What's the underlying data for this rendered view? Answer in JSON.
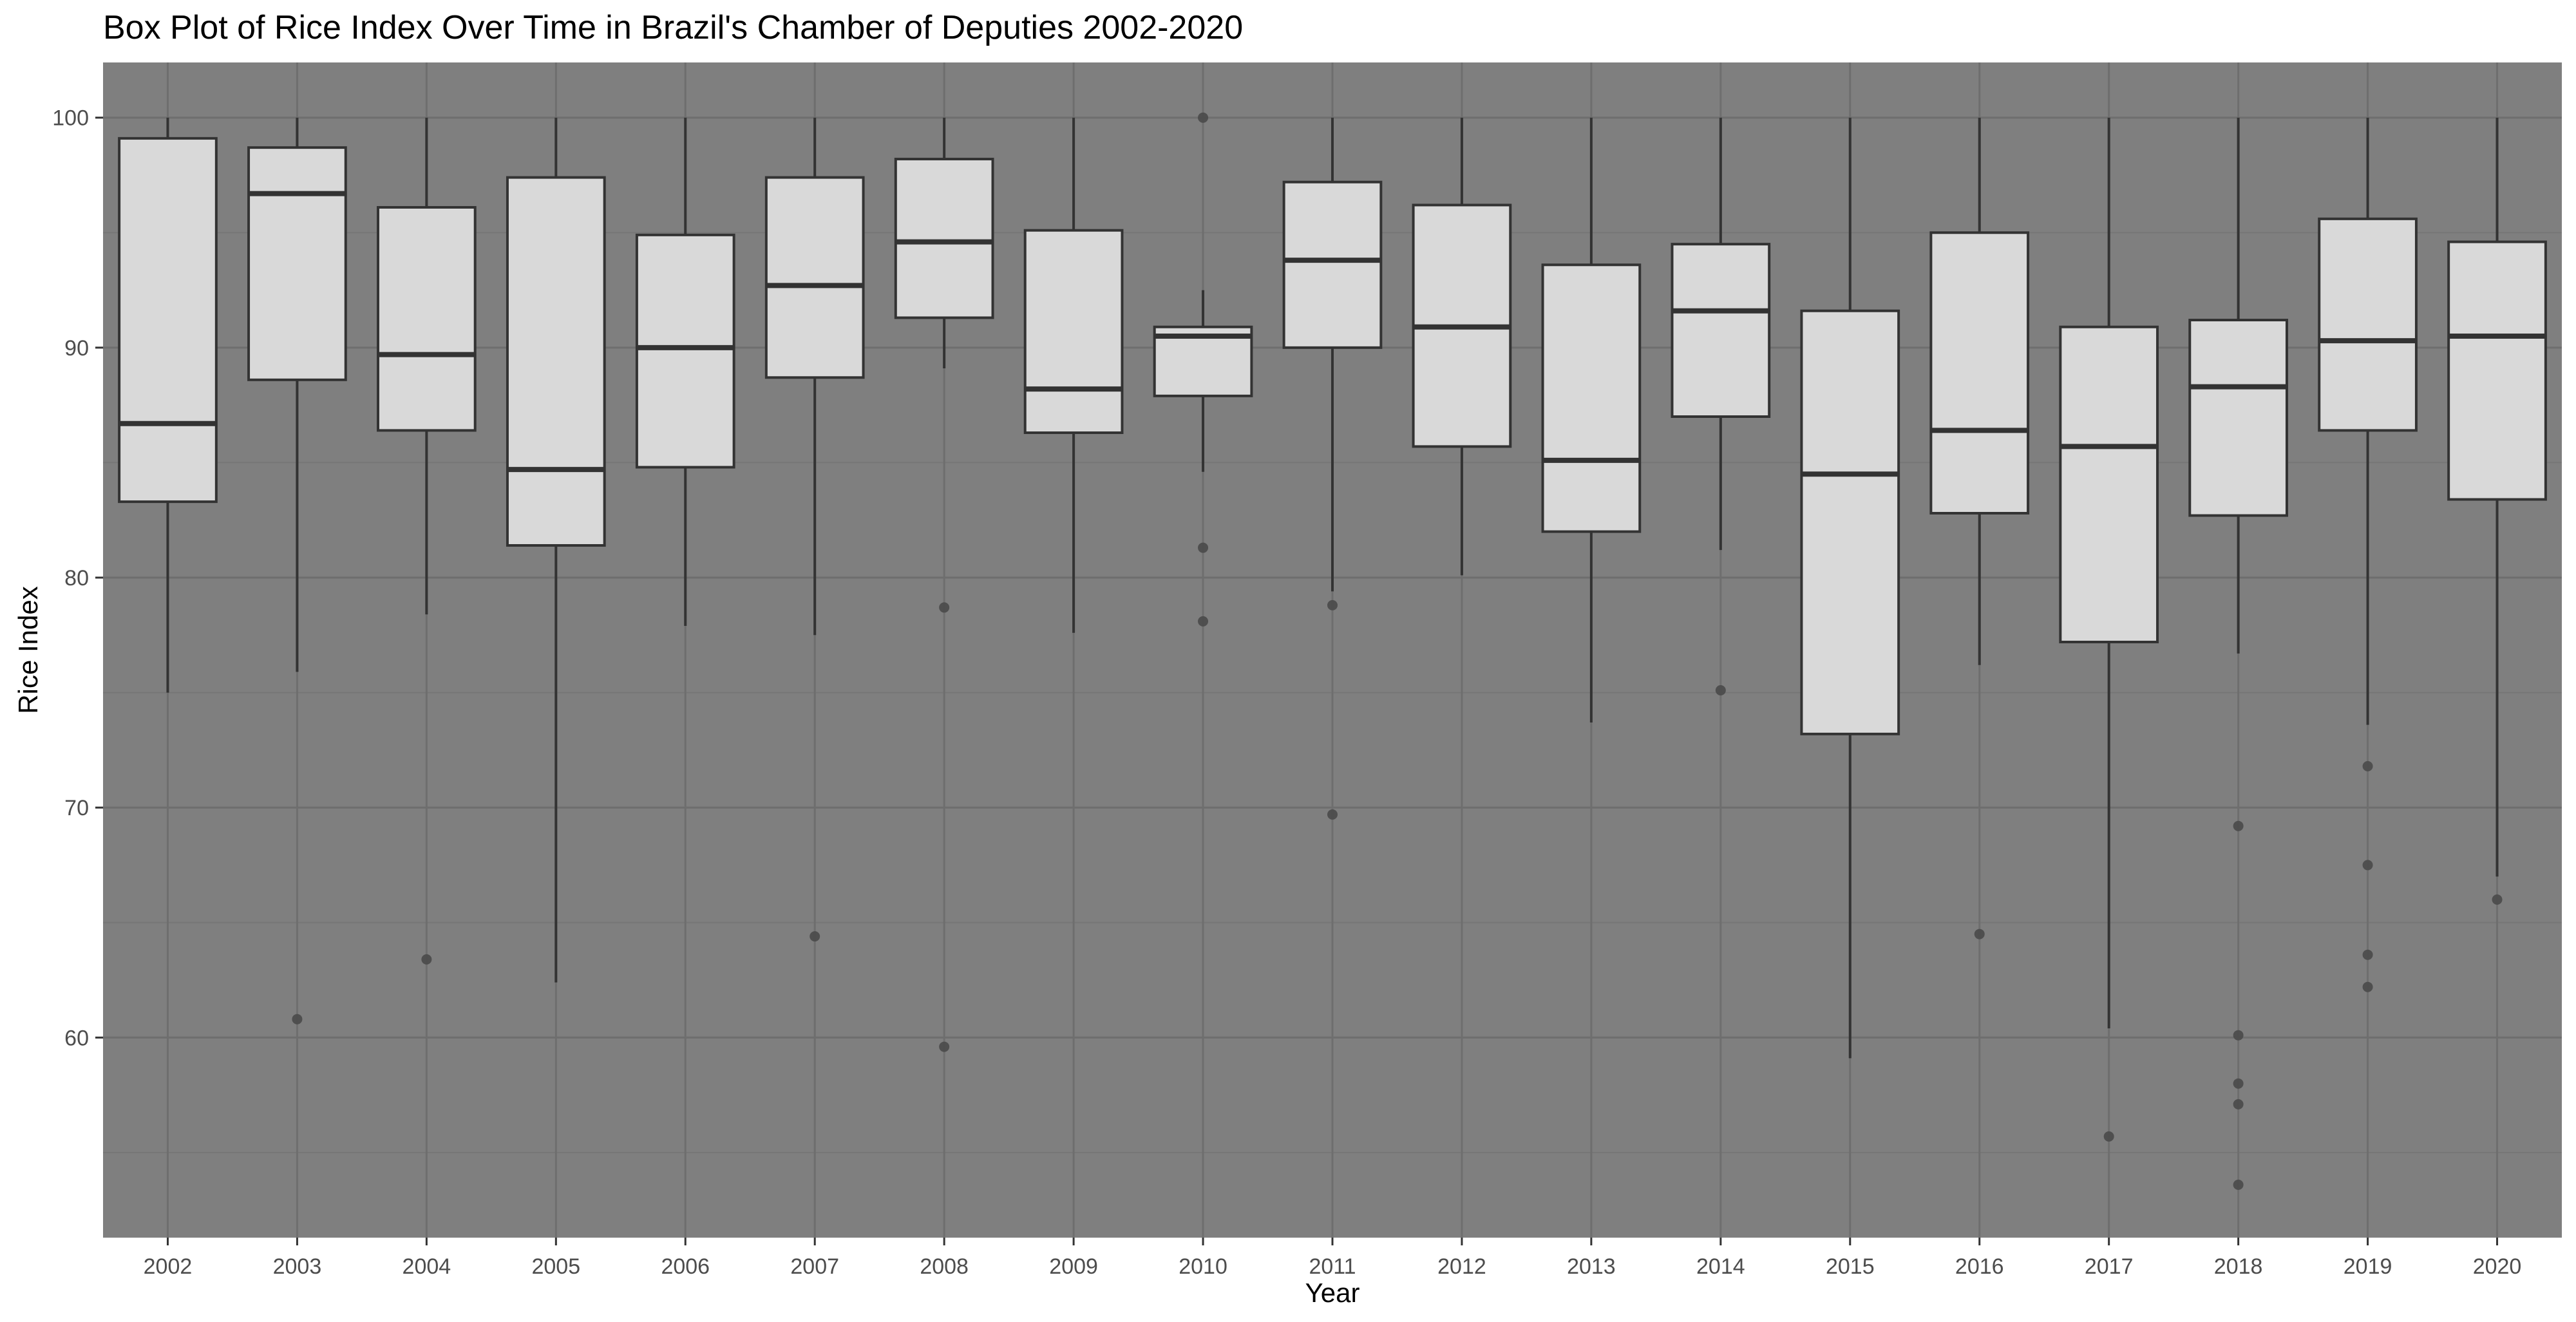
{
  "chart_data": {
    "type": "box",
    "title": "Box Plot of Rice Index Over Time in Brazil's Chamber of Deputies 2002-2020",
    "xlabel": "Year",
    "ylabel": "Rice Index",
    "ylim": [
      51.3,
      102.4
    ],
    "yticks": [
      60,
      70,
      80,
      90,
      100
    ],
    "grid": true,
    "colors": {
      "panel": "#7f7f7f",
      "grid_major": "#6e6e6e",
      "grid_minor": "#767676",
      "box_fill": "#d9d9d9",
      "box_stroke": "#333333",
      "outlier": "#4a4a4a"
    },
    "categories": [
      "2002",
      "2003",
      "2004",
      "2005",
      "2006",
      "2007",
      "2008",
      "2009",
      "2010",
      "2011",
      "2012",
      "2013",
      "2014",
      "2015",
      "2016",
      "2017",
      "2018",
      "2019",
      "2020"
    ],
    "boxes": [
      {
        "year": "2002",
        "whisker_low": 75.0,
        "q1": 83.3,
        "median": 86.7,
        "q3": 99.1,
        "whisker_high": 100.0,
        "outliers": []
      },
      {
        "year": "2003",
        "whisker_low": 75.9,
        "q1": 88.6,
        "median": 96.7,
        "q3": 98.7,
        "whisker_high": 100.0,
        "outliers": [
          60.8
        ]
      },
      {
        "year": "2004",
        "whisker_low": 78.4,
        "q1": 86.4,
        "median": 89.7,
        "q3": 96.1,
        "whisker_high": 100.0,
        "outliers": [
          63.4
        ]
      },
      {
        "year": "2005",
        "whisker_low": 62.4,
        "q1": 81.4,
        "median": 84.7,
        "q3": 97.4,
        "whisker_high": 100.0,
        "outliers": []
      },
      {
        "year": "2006",
        "whisker_low": 77.9,
        "q1": 84.8,
        "median": 90.0,
        "q3": 94.9,
        "whisker_high": 100.0,
        "outliers": []
      },
      {
        "year": "2007",
        "whisker_low": 77.5,
        "q1": 88.7,
        "median": 92.7,
        "q3": 97.4,
        "whisker_high": 100.0,
        "outliers": [
          64.4
        ]
      },
      {
        "year": "2008",
        "whisker_low": 89.1,
        "q1": 91.3,
        "median": 94.6,
        "q3": 98.2,
        "whisker_high": 100.0,
        "outliers": [
          78.7,
          59.6
        ]
      },
      {
        "year": "2009",
        "whisker_low": 77.6,
        "q1": 86.3,
        "median": 88.2,
        "q3": 95.1,
        "whisker_high": 100.0,
        "outliers": []
      },
      {
        "year": "2010",
        "whisker_low": 84.6,
        "q1": 87.9,
        "median": 90.5,
        "q3": 90.9,
        "whisker_high": 92.5,
        "outliers": [
          100.0,
          81.3,
          78.1
        ]
      },
      {
        "year": "2011",
        "whisker_low": 79.4,
        "q1": 90.0,
        "median": 93.8,
        "q3": 97.2,
        "whisker_high": 100.0,
        "outliers": [
          78.8,
          69.7
        ]
      },
      {
        "year": "2012",
        "whisker_low": 80.1,
        "q1": 85.7,
        "median": 90.9,
        "q3": 96.2,
        "whisker_high": 100.0,
        "outliers": []
      },
      {
        "year": "2013",
        "whisker_low": 73.7,
        "q1": 82.0,
        "median": 85.1,
        "q3": 93.6,
        "whisker_high": 100.0,
        "outliers": []
      },
      {
        "year": "2014",
        "whisker_low": 81.2,
        "q1": 87.0,
        "median": 91.6,
        "q3": 94.5,
        "whisker_high": 100.0,
        "outliers": [
          75.1
        ]
      },
      {
        "year": "2015",
        "whisker_low": 59.1,
        "q1": 73.2,
        "median": 84.5,
        "q3": 91.6,
        "whisker_high": 100.0,
        "outliers": []
      },
      {
        "year": "2016",
        "whisker_low": 76.2,
        "q1": 82.8,
        "median": 86.4,
        "q3": 95.0,
        "whisker_high": 100.0,
        "outliers": [
          64.5
        ]
      },
      {
        "year": "2017",
        "whisker_low": 60.4,
        "q1": 77.2,
        "median": 85.7,
        "q3": 90.9,
        "whisker_high": 100.0,
        "outliers": [
          55.7
        ]
      },
      {
        "year": "2018",
        "whisker_low": 76.7,
        "q1": 82.7,
        "median": 88.3,
        "q3": 91.2,
        "whisker_high": 100.0,
        "outliers": [
          69.2,
          60.1,
          58.0,
          57.1,
          53.6
        ]
      },
      {
        "year": "2019",
        "whisker_low": 73.6,
        "q1": 86.4,
        "median": 90.3,
        "q3": 95.6,
        "whisker_high": 100.0,
        "outliers": [
          71.8,
          67.5,
          63.6,
          62.2
        ]
      },
      {
        "year": "2020",
        "whisker_low": 67.0,
        "q1": 83.4,
        "median": 90.5,
        "q3": 94.6,
        "whisker_high": 100.0,
        "outliers": [
          66.0
        ]
      }
    ]
  }
}
